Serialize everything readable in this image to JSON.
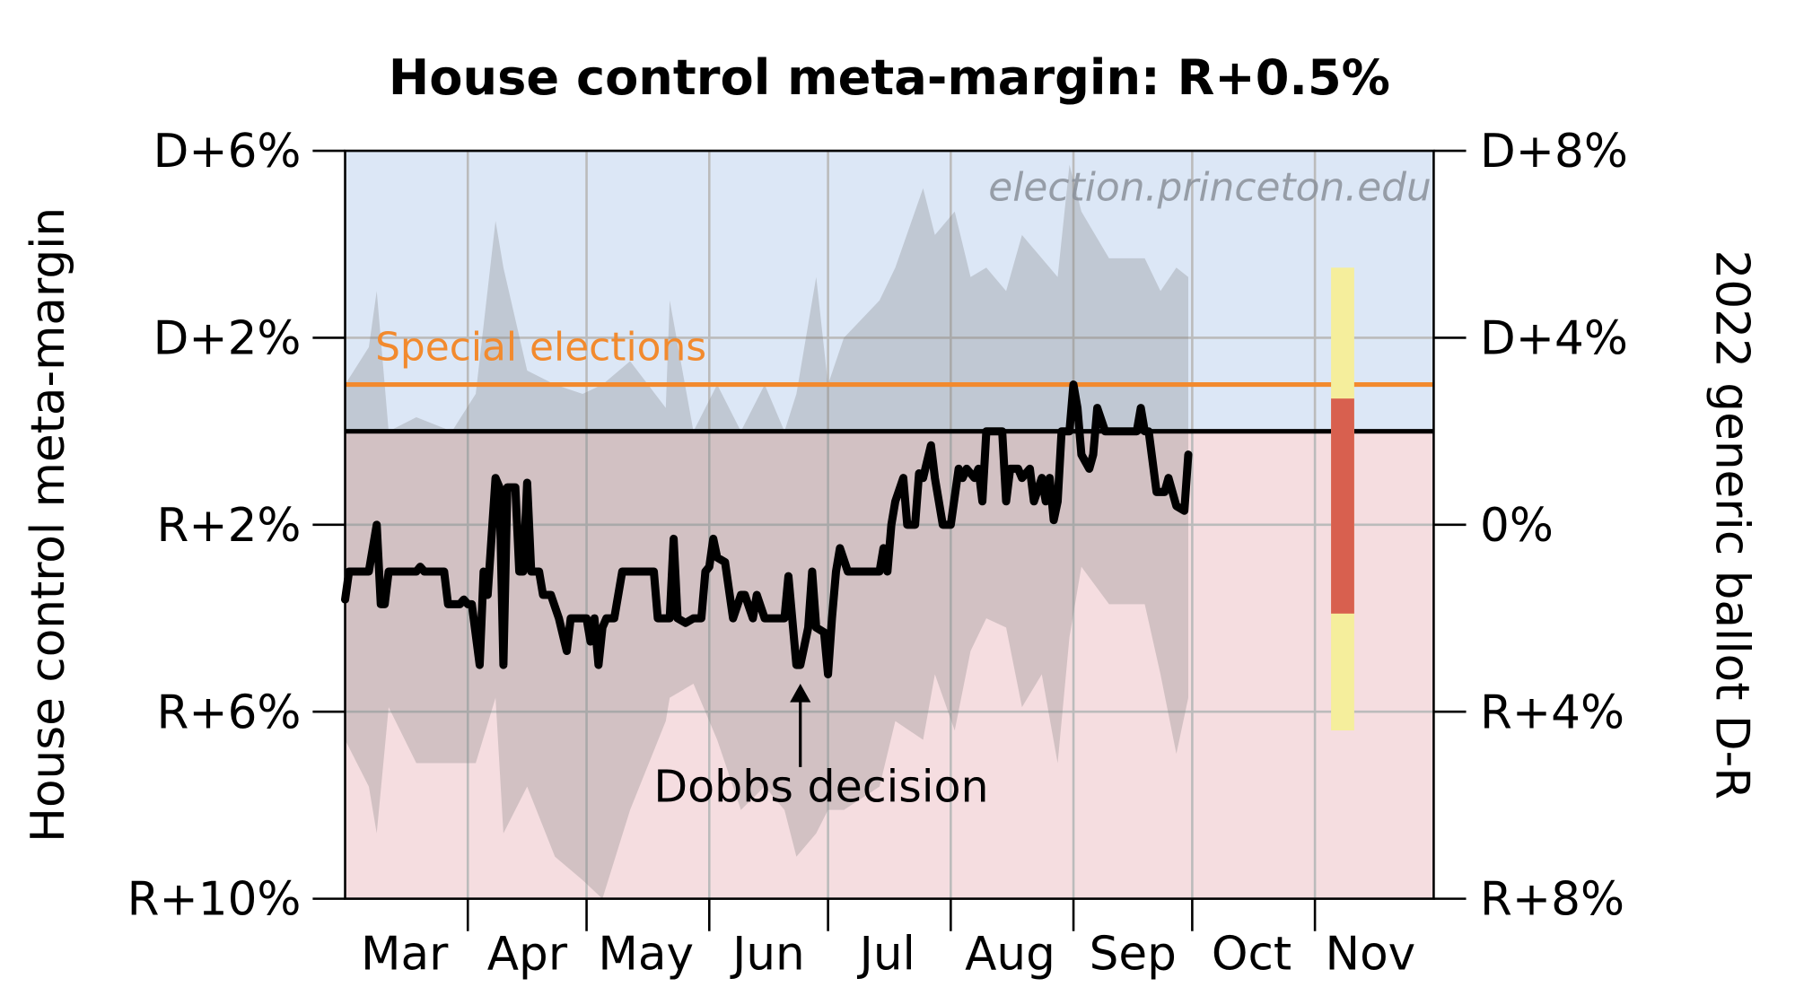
{
  "chart_data": {
    "type": "line",
    "title": "House control meta-margin: R+0.5%",
    "ylabel": "House control meta-margin",
    "ylabel_right": "2022 generic ballot D-R",
    "watermark": "election.princeton.edu",
    "xlim": [
      "2022-03-01",
      "2022-11-30"
    ],
    "ylim": [
      -10,
      6
    ],
    "ylim_right": [
      -8,
      8
    ],
    "grid": true,
    "x_ticks": [
      "2022-04-01",
      "2022-05-01",
      "2022-06-01",
      "2022-07-01",
      "2022-08-01",
      "2022-09-01",
      "2022-10-01",
      "2022-11-01"
    ],
    "month_labels": [
      {
        "label": "Mar",
        "date": "2022-03-16"
      },
      {
        "label": "Apr",
        "date": "2022-04-16"
      },
      {
        "label": "May",
        "date": "2022-05-16"
      },
      {
        "label": "Jun",
        "date": "2022-06-16"
      },
      {
        "label": "Jul",
        "date": "2022-07-16"
      },
      {
        "label": "Aug",
        "date": "2022-08-16"
      },
      {
        "label": "Sep",
        "date": "2022-09-16"
      },
      {
        "label": "Oct",
        "date": "2022-10-16"
      },
      {
        "label": "Nov",
        "date": "2022-11-15"
      }
    ],
    "y_ticks_left": [
      {
        "value": 6,
        "label": "D+6%"
      },
      {
        "value": 2,
        "label": "D+2%"
      },
      {
        "value": -2,
        "label": "R+2%"
      },
      {
        "value": -6,
        "label": "R+6%"
      },
      {
        "value": -10,
        "label": "R+10%"
      }
    ],
    "y_ticks_right": [
      {
        "value": 8,
        "label": "D+8%"
      },
      {
        "value": 4,
        "label": "D+4%"
      },
      {
        "value": 0,
        "label": "0%"
      },
      {
        "value": -4,
        "label": "R+4%"
      },
      {
        "value": -8,
        "label": "R+8%"
      }
    ],
    "background": {
      "dem_color": "#dce7f6",
      "rep_color": "#f5dde0"
    },
    "zero_line": 0,
    "special_elections": {
      "label": "Special elections",
      "value": 1.0,
      "color": "#f28a2e"
    },
    "annotation": {
      "label": "Dobbs decision",
      "date": "2022-06-24",
      "value": -5.4
    },
    "generic_ballot": {
      "date": "2022-11-08",
      "outer_range": [
        -4.4,
        5.5
      ],
      "outer_color": "#f5ee9c",
      "inner_range": [
        -1.9,
        2.7
      ],
      "inner_color": "#d8604f"
    },
    "band": {
      "color": "#808080",
      "points": [
        [
          "2022-03-01",
          -6.6,
          1.0
        ],
        [
          "2022-03-07",
          -7.6,
          1.8
        ],
        [
          "2022-03-09",
          -8.6,
          3.0
        ],
        [
          "2022-03-12",
          -5.9,
          0.0
        ],
        [
          "2022-03-19",
          -7.1,
          0.3
        ],
        [
          "2022-03-28",
          -7.1,
          0.0
        ],
        [
          "2022-04-03",
          -7.1,
          0.8
        ],
        [
          "2022-04-08",
          -5.7,
          4.5
        ],
        [
          "2022-04-10",
          -8.6,
          3.5
        ],
        [
          "2022-04-16",
          -7.6,
          1.3
        ],
        [
          "2022-04-23",
          -9.1,
          1.0
        ],
        [
          "2022-04-30",
          -9.6,
          0.8
        ],
        [
          "2022-05-05",
          -10.0,
          1.0
        ],
        [
          "2022-05-12",
          -8.1,
          1.5
        ],
        [
          "2022-05-21",
          -6.2,
          0.5
        ],
        [
          "2022-05-22",
          -5.7,
          2.8
        ],
        [
          "2022-05-28",
          -5.4,
          0.0
        ],
        [
          "2022-06-03",
          -6.6,
          1.0
        ],
        [
          "2022-06-09",
          -8.1,
          0.0
        ],
        [
          "2022-06-15",
          -7.6,
          1.0
        ],
        [
          "2022-06-20",
          -8.1,
          0.0
        ],
        [
          "2022-06-23",
          -9.1,
          0.8
        ],
        [
          "2022-06-28",
          -8.6,
          3.3
        ],
        [
          "2022-07-01",
          -8.1,
          1.0
        ],
        [
          "2022-07-05",
          -8.1,
          2.0
        ],
        [
          "2022-07-14",
          -7.6,
          2.8
        ],
        [
          "2022-07-18",
          -6.2,
          3.5
        ],
        [
          "2022-07-25",
          -6.6,
          5.2
        ],
        [
          "2022-07-28",
          -5.2,
          4.2
        ],
        [
          "2022-08-02",
          -6.4,
          4.7
        ],
        [
          "2022-08-06",
          -4.7,
          3.3
        ],
        [
          "2022-08-10",
          -4.0,
          3.5
        ],
        [
          "2022-08-15",
          -4.2,
          3.0
        ],
        [
          "2022-08-19",
          -5.9,
          4.2
        ],
        [
          "2022-08-24",
          -5.2,
          3.7
        ],
        [
          "2022-08-28",
          -7.1,
          3.3
        ],
        [
          "2022-08-31",
          -4.4,
          5.7
        ],
        [
          "2022-09-03",
          -2.9,
          4.7
        ],
        [
          "2022-09-10",
          -3.7,
          3.7
        ],
        [
          "2022-09-19",
          -3.7,
          3.7
        ],
        [
          "2022-09-23",
          -5.2,
          3.0
        ],
        [
          "2022-09-27",
          -6.9,
          3.5
        ],
        [
          "2022-09-30",
          -5.7,
          3.3
        ]
      ]
    },
    "series": [
      {
        "color": "#000000",
        "points": [
          [
            "2022-03-01",
            -3.6
          ],
          [
            "2022-03-02",
            -3.0
          ],
          [
            "2022-03-07",
            -3.0
          ],
          [
            "2022-03-09",
            -2.0
          ],
          [
            "2022-03-10",
            -3.7
          ],
          [
            "2022-03-11",
            -3.7
          ],
          [
            "2022-03-12",
            -3.0
          ],
          [
            "2022-03-19",
            -3.0
          ],
          [
            "2022-03-20",
            -2.9
          ],
          [
            "2022-03-21",
            -3.0
          ],
          [
            "2022-03-26",
            -3.0
          ],
          [
            "2022-03-27",
            -3.7
          ],
          [
            "2022-03-30",
            -3.7
          ],
          [
            "2022-03-31",
            -3.6
          ],
          [
            "2022-04-01",
            -3.7
          ],
          [
            "2022-04-02",
            -3.7
          ],
          [
            "2022-04-04",
            -5.0
          ],
          [
            "2022-04-05",
            -3.0
          ],
          [
            "2022-04-06",
            -3.5
          ],
          [
            "2022-04-08",
            -1.0
          ],
          [
            "2022-04-09",
            -1.2
          ],
          [
            "2022-04-10",
            -5.0
          ],
          [
            "2022-04-11",
            -1.2
          ],
          [
            "2022-04-13",
            -1.2
          ],
          [
            "2022-04-14",
            -3.0
          ],
          [
            "2022-04-15",
            -3.0
          ],
          [
            "2022-04-16",
            -1.1
          ],
          [
            "2022-04-17",
            -3.0
          ],
          [
            "2022-04-19",
            -3.0
          ],
          [
            "2022-04-20",
            -3.5
          ],
          [
            "2022-04-22",
            -3.5
          ],
          [
            "2022-04-24",
            -4.0
          ],
          [
            "2022-04-26",
            -4.7
          ],
          [
            "2022-04-27",
            -4.0
          ],
          [
            "2022-05-01",
            -4.0
          ],
          [
            "2022-05-02",
            -4.5
          ],
          [
            "2022-05-03",
            -4.0
          ],
          [
            "2022-05-04",
            -5.0
          ],
          [
            "2022-05-05",
            -4.2
          ],
          [
            "2022-05-06",
            -4.0
          ],
          [
            "2022-05-08",
            -4.0
          ],
          [
            "2022-05-10",
            -3.0
          ],
          [
            "2022-05-18",
            -3.0
          ],
          [
            "2022-05-19",
            -4.0
          ],
          [
            "2022-05-22",
            -4.0
          ],
          [
            "2022-05-23",
            -2.3
          ],
          [
            "2022-05-24",
            -4.0
          ],
          [
            "2022-05-26",
            -4.1
          ],
          [
            "2022-05-28",
            -4.0
          ],
          [
            "2022-05-30",
            -4.0
          ],
          [
            "2022-05-31",
            -3.0
          ],
          [
            "2022-06-01",
            -2.9
          ],
          [
            "2022-06-02",
            -2.3
          ],
          [
            "2022-06-03",
            -2.7
          ],
          [
            "2022-06-05",
            -2.8
          ],
          [
            "2022-06-07",
            -4.0
          ],
          [
            "2022-06-09",
            -3.5
          ],
          [
            "2022-06-10",
            -3.5
          ],
          [
            "2022-06-12",
            -4.0
          ],
          [
            "2022-06-13",
            -3.5
          ],
          [
            "2022-06-15",
            -4.0
          ],
          [
            "2022-06-20",
            -4.0
          ],
          [
            "2022-06-21",
            -3.1
          ],
          [
            "2022-06-23",
            -5.0
          ],
          [
            "2022-06-24",
            -5.0
          ],
          [
            "2022-06-26",
            -4.2
          ],
          [
            "2022-06-27",
            -3.0
          ],
          [
            "2022-06-28",
            -4.2
          ],
          [
            "2022-06-30",
            -4.3
          ],
          [
            "2022-07-01",
            -5.2
          ],
          [
            "2022-07-02",
            -4.0
          ],
          [
            "2022-07-03",
            -3.0
          ],
          [
            "2022-07-04",
            -2.5
          ],
          [
            "2022-07-06",
            -3.0
          ],
          [
            "2022-07-14",
            -3.0
          ],
          [
            "2022-07-15",
            -2.5
          ],
          [
            "2022-07-16",
            -3.0
          ],
          [
            "2022-07-17",
            -2.0
          ],
          [
            "2022-07-18",
            -1.5
          ],
          [
            "2022-07-20",
            -1.0
          ],
          [
            "2022-07-21",
            -2.0
          ],
          [
            "2022-07-23",
            -2.0
          ],
          [
            "2022-07-24",
            -0.9
          ],
          [
            "2022-07-25",
            -1.0
          ],
          [
            "2022-07-27",
            -0.3
          ],
          [
            "2022-07-28",
            -1.0
          ],
          [
            "2022-07-30",
            -2.0
          ],
          [
            "2022-08-01",
            -2.0
          ],
          [
            "2022-08-03",
            -0.8
          ],
          [
            "2022-08-04",
            -1.0
          ],
          [
            "2022-08-05",
            -0.8
          ],
          [
            "2022-08-07",
            -1.0
          ],
          [
            "2022-08-08",
            -0.8
          ],
          [
            "2022-08-09",
            -1.5
          ],
          [
            "2022-08-10",
            0.0
          ],
          [
            "2022-08-12",
            0.0
          ],
          [
            "2022-08-14",
            0.0
          ],
          [
            "2022-08-15",
            -1.5
          ],
          [
            "2022-08-16",
            -0.8
          ],
          [
            "2022-08-18",
            -0.8
          ],
          [
            "2022-08-19",
            -1.0
          ],
          [
            "2022-08-21",
            -0.8
          ],
          [
            "2022-08-22",
            -1.5
          ],
          [
            "2022-08-24",
            -1.0
          ],
          [
            "2022-08-25",
            -1.5
          ],
          [
            "2022-08-26",
            -1.0
          ],
          [
            "2022-08-27",
            -1.9
          ],
          [
            "2022-08-28",
            -1.5
          ],
          [
            "2022-08-29",
            0.0
          ],
          [
            "2022-08-31",
            0.0
          ],
          [
            "2022-09-01",
            1.0
          ],
          [
            "2022-09-02",
            0.5
          ],
          [
            "2022-09-03",
            -0.5
          ],
          [
            "2022-09-05",
            -0.8
          ],
          [
            "2022-09-06",
            -0.5
          ],
          [
            "2022-09-07",
            0.5
          ],
          [
            "2022-09-09",
            0.0
          ],
          [
            "2022-09-17",
            0.0
          ],
          [
            "2022-09-18",
            0.5
          ],
          [
            "2022-09-19",
            0.0
          ],
          [
            "2022-09-20",
            0.0
          ],
          [
            "2022-09-22",
            -1.3
          ],
          [
            "2022-09-24",
            -1.3
          ],
          [
            "2022-09-25",
            -1.0
          ],
          [
            "2022-09-27",
            -1.6
          ],
          [
            "2022-09-29",
            -1.7
          ],
          [
            "2022-09-30",
            -0.5
          ]
        ]
      }
    ]
  }
}
